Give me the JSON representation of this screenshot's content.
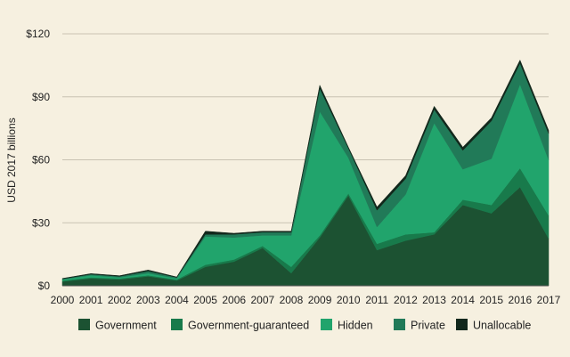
{
  "chart_data": {
    "type": "area",
    "stacked": true,
    "title": "",
    "xlabel": "",
    "ylabel": "USD 2017 billions",
    "x": [
      "2000",
      "2001",
      "2002",
      "2003",
      "2004",
      "2005",
      "2006",
      "2007",
      "2008",
      "2009",
      "2010",
      "2011",
      "2012",
      "2013",
      "2014",
      "2015",
      "2016",
      "2017"
    ],
    "y_ticks": [
      "$0",
      "$30",
      "$60",
      "$90",
      "$120"
    ],
    "y_tick_values": [
      0,
      30,
      60,
      90,
      120
    ],
    "ylim": [
      0,
      120
    ],
    "grid": "horizontal",
    "legend_position": "bottom",
    "series": [
      {
        "name": "Government",
        "color": "#1c5232",
        "values": [
          2,
          3.5,
          3,
          4.5,
          2.5,
          9,
          11.5,
          18,
          6,
          23,
          43,
          17,
          21.5,
          24.5,
          38.5,
          34.5,
          47,
          22.5
        ]
      },
      {
        "name": "Government-guaranteed",
        "color": "#187a4b",
        "values": [
          0.5,
          0.5,
          0.5,
          0.5,
          0.5,
          1,
          1,
          1,
          3,
          1,
          1,
          3,
          3,
          1,
          2.5,
          4,
          9,
          11
        ]
      },
      {
        "name": "Hidden",
        "color": "#21a46c",
        "values": [
          0.5,
          1,
          0.5,
          1,
          0.5,
          13.5,
          10.5,
          5,
          15,
          59,
          17,
          8,
          19,
          52,
          14.5,
          22,
          40,
          26.5
        ]
      },
      {
        "name": "Private",
        "color": "#217a58",
        "values": [
          0.3,
          0.5,
          0.5,
          1,
          0.5,
          1,
          1.5,
          1.5,
          1.5,
          11,
          4.5,
          8,
          7.5,
          6.5,
          9,
          18,
          10,
          12.5
        ]
      },
      {
        "name": "Unallocable",
        "color": "#12281c",
        "values": [
          0.2,
          0.3,
          0.3,
          0.5,
          0.2,
          1.5,
          0.5,
          0.5,
          0.5,
          1.5,
          0.5,
          1.5,
          1.5,
          1.5,
          1.5,
          1.5,
          1.5,
          1.5
        ]
      }
    ]
  }
}
